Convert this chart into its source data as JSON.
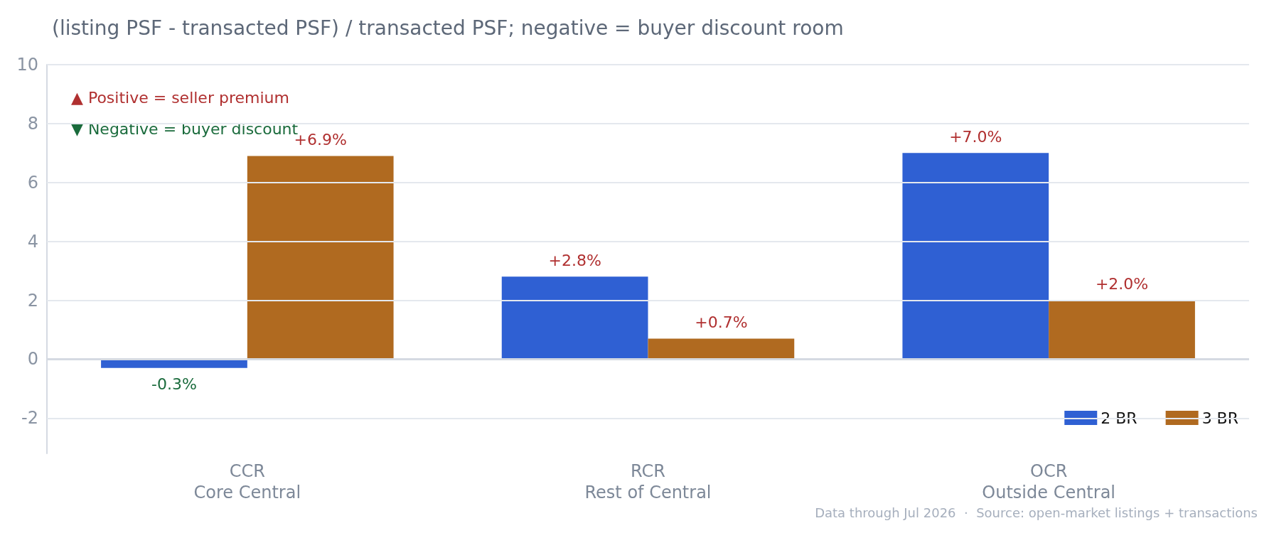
{
  "chart_data": {
    "type": "bar",
    "title": "(listing PSF - transacted PSF) / transacted PSF; negative = buyer discount room",
    "categories": [
      "CCR\nCore Central",
      "RCR\nRest of Central",
      "OCR\nOutside Central"
    ],
    "series": [
      {
        "name": "2 BR",
        "color": "#2f60d3",
        "values": [
          -0.3,
          2.8,
          7.0
        ],
        "value_labels": [
          "-0.3%",
          "+2.8%",
          "+7.0%"
        ]
      },
      {
        "name": "3 BR",
        "color": "#b06a20",
        "values": [
          6.9,
          0.7,
          2.0
        ],
        "value_labels": [
          "+6.9%",
          "+0.7%",
          "+2.0%"
        ]
      }
    ],
    "ylim": [
      -3.2,
      10
    ],
    "yticks": [
      -2,
      0,
      2,
      4,
      6,
      8,
      10
    ],
    "grid": "y",
    "legend": "bottom right",
    "annotations": [
      "▲ Positive = seller premium",
      "▼ Negative = buyer discount",
      "Data through Jul 2026  ·  Source: open-market listings + transactions"
    ]
  }
}
